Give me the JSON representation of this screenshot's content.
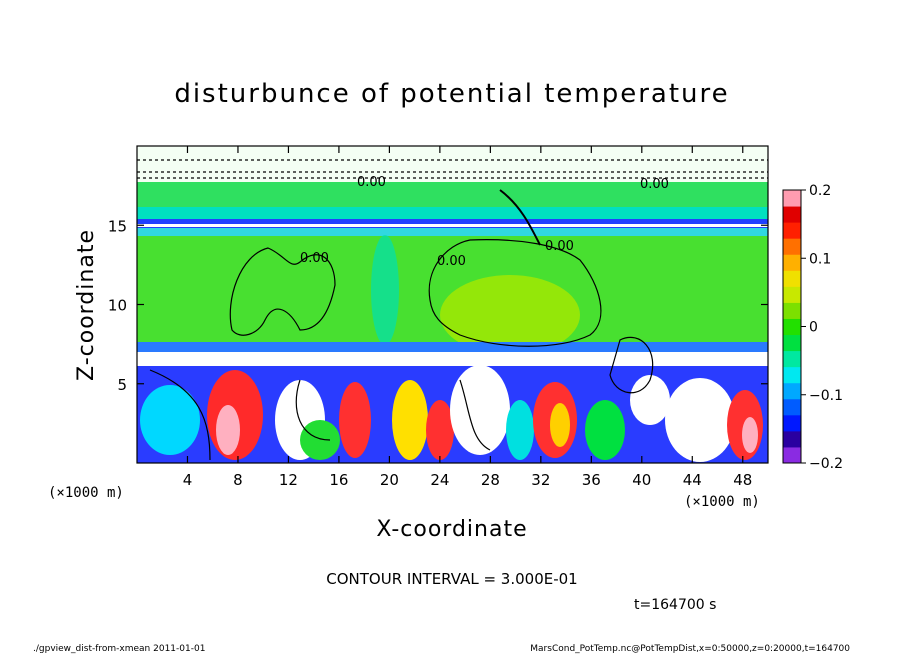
{
  "chart_data": {
    "type": "heatmap",
    "title": "disturbunce of potential temperature",
    "xlabel": "X-coordinate",
    "ylabel": "Z-coordinate",
    "x_unit": "(×1000 m)",
    "y_unit": "(×1000 m)",
    "xlim": [
      0,
      50
    ],
    "ylim": [
      0,
      20
    ],
    "x_ticks": [
      4,
      8,
      12,
      16,
      20,
      24,
      28,
      32,
      36,
      40,
      44,
      48
    ],
    "y_ticks": [
      5,
      10,
      15
    ],
    "colorbar": {
      "range": [
        -0.2,
        0.2
      ],
      "tick_values": [
        0.2,
        0.1,
        0,
        -0.1,
        -0.2
      ],
      "tick_labels": [
        "0.2",
        "0.1",
        "0",
        "−0.1",
        "−0.2"
      ],
      "colors": [
        "#8a2be2",
        "#2a00a0",
        "#0018ff",
        "#005cff",
        "#00a8ff",
        "#00e8f0",
        "#00e8a0",
        "#00e040",
        "#22e000",
        "#7ce000",
        "#c8e800",
        "#f0e000",
        "#ffb000",
        "#ff7000",
        "#ff2000",
        "#e00000",
        "#ff9cb0"
      ]
    },
    "contour_labels": [
      "0.00",
      "0.00",
      "0.00",
      "0.00",
      "0.00"
    ],
    "contour_interval_text": "CONTOUR INTERVAL = 3.000E-01",
    "time_text": "t=164700  s"
  },
  "footer": {
    "left": "./gpview_dist-from-xmean  2011-01-01",
    "right": "MarsCond_PotTemp.nc@PotTempDist,x=0:50000,z=0:20000,t=164700"
  },
  "colors": {
    "background": "#ffffff",
    "neutral_green": "#22dd22",
    "cold_band": "#1a1aff",
    "warm": "#ff2020"
  }
}
